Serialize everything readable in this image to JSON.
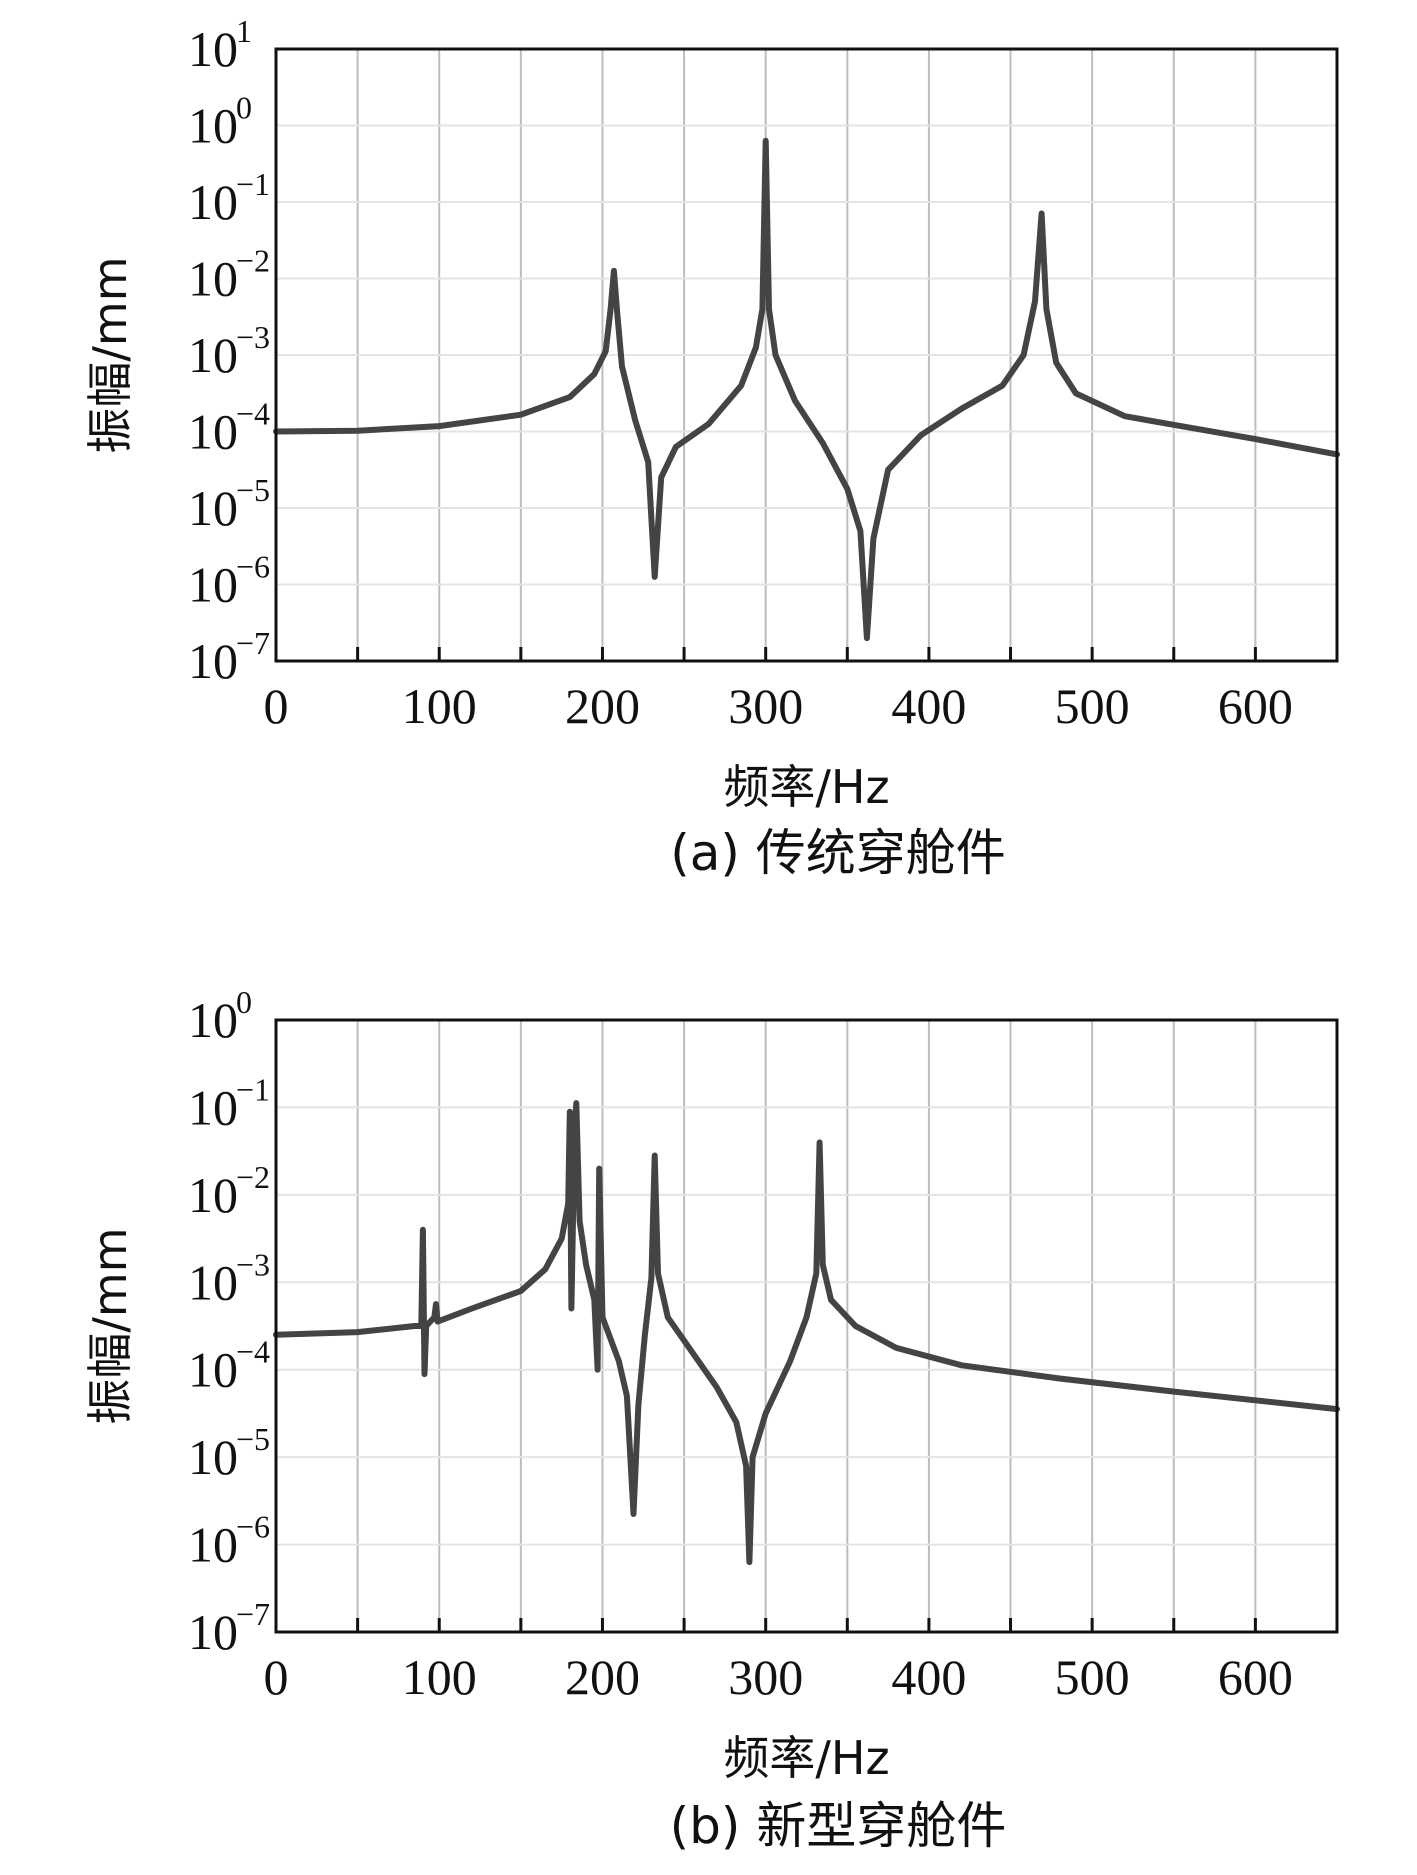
{
  "chart_data": [
    {
      "type": "line",
      "caption": "(a) 传统穿舱件",
      "xlabel": "频率/Hz",
      "ylabel": "振幅/mm",
      "xlim": [
        0,
        650
      ],
      "ylim_exp": [
        -7,
        1
      ],
      "y_scale": "log",
      "grid": true,
      "x_ticks": [
        "0",
        "100",
        "200",
        "300",
        "400",
        "500",
        "600"
      ],
      "x_tick_values": [
        0,
        100,
        200,
        300,
        400,
        500,
        600
      ],
      "y_tick_base": "10",
      "y_tick_exponents": [
        "1",
        "0",
        "−1",
        "−2",
        "−3",
        "−4",
        "−5",
        "−6",
        "−7"
      ],
      "series": [
        {
          "points": [
            [
              0,
              -4
            ],
            [
              50,
              -3.99
            ],
            [
              100,
              -3.93
            ],
            [
              150,
              -3.78
            ],
            [
              180,
              -3.55
            ],
            [
              195,
              -3.25
            ],
            [
              202,
              -2.95
            ],
            [
              205,
              -2.4
            ],
            [
              207,
              -1.9
            ],
            [
              209,
              -2.45
            ],
            [
              212,
              -3.15
            ],
            [
              220,
              -3.85
            ],
            [
              228,
              -4.4
            ],
            [
              232,
              -5.9
            ],
            [
              236,
              -4.6
            ],
            [
              245,
              -4.2
            ],
            [
              265,
              -3.9
            ],
            [
              285,
              -3.4
            ],
            [
              294,
              -2.9
            ],
            [
              298,
              -2.4
            ],
            [
              300,
              -0.2
            ],
            [
              302,
              -2.4
            ],
            [
              306,
              -3.0
            ],
            [
              318,
              -3.6
            ],
            [
              335,
              -4.15
            ],
            [
              350,
              -4.75
            ],
            [
              358,
              -5.3
            ],
            [
              362,
              -6.7
            ],
            [
              366,
              -5.4
            ],
            [
              375,
              -4.5
            ],
            [
              395,
              -4.05
            ],
            [
              420,
              -3.7
            ],
            [
              445,
              -3.4
            ],
            [
              458,
              -3.0
            ],
            [
              465,
              -2.3
            ],
            [
              469,
              -1.15
            ],
            [
              472,
              -2.4
            ],
            [
              478,
              -3.1
            ],
            [
              490,
              -3.5
            ],
            [
              520,
              -3.8
            ],
            [
              560,
              -3.95
            ],
            [
              600,
              -4.1
            ],
            [
              650,
              -4.3
            ]
          ]
        }
      ]
    },
    {
      "type": "line",
      "caption": "(b) 新型穿舱件",
      "xlabel": "频率/Hz",
      "ylabel": "振幅/mm",
      "xlim": [
        0,
        650
      ],
      "ylim_exp": [
        -7,
        0
      ],
      "y_scale": "log",
      "grid": true,
      "x_ticks": [
        "0",
        "100",
        "200",
        "300",
        "400",
        "500",
        "600"
      ],
      "x_tick_values": [
        0,
        100,
        200,
        300,
        400,
        500,
        600
      ],
      "y_tick_base": "10",
      "y_tick_exponents": [
        "0",
        "−1",
        "−2",
        "−3",
        "−4",
        "−5",
        "−6",
        "−7"
      ],
      "series": [
        {
          "points": [
            [
              0,
              -3.6
            ],
            [
              50,
              -3.57
            ],
            [
              85,
              -3.5
            ],
            [
              89,
              -3.5
            ],
            [
              90,
              -2.4
            ],
            [
              91,
              -4.05
            ],
            [
              92,
              -3.5
            ],
            [
              97,
              -3.4
            ],
            [
              98,
              -3.25
            ],
            [
              99,
              -3.45
            ],
            [
              120,
              -3.3
            ],
            [
              150,
              -3.1
            ],
            [
              165,
              -2.85
            ],
            [
              175,
              -2.5
            ],
            [
              179,
              -2.1
            ],
            [
              180,
              -1.05
            ],
            [
              181,
              -3.3
            ],
            [
              183,
              -1.2
            ],
            [
              184,
              -0.95
            ],
            [
              186,
              -2.3
            ],
            [
              190,
              -2.8
            ],
            [
              195,
              -3.2
            ],
            [
              197,
              -4.0
            ],
            [
              198,
              -1.7
            ],
            [
              200,
              -3.4
            ],
            [
              210,
              -3.9
            ],
            [
              215,
              -4.3
            ],
            [
              219,
              -5.65
            ],
            [
              222,
              -4.4
            ],
            [
              226,
              -3.6
            ],
            [
              230,
              -2.95
            ],
            [
              232,
              -1.55
            ],
            [
              234,
              -2.9
            ],
            [
              240,
              -3.4
            ],
            [
              255,
              -3.8
            ],
            [
              270,
              -4.2
            ],
            [
              282,
              -4.6
            ],
            [
              288,
              -5.1
            ],
            [
              290,
              -6.2
            ],
            [
              292,
              -5.0
            ],
            [
              300,
              -4.5
            ],
            [
              315,
              -3.9
            ],
            [
              325,
              -3.4
            ],
            [
              331,
              -2.9
            ],
            [
              333,
              -1.4
            ],
            [
              335,
              -2.8
            ],
            [
              340,
              -3.2
            ],
            [
              355,
              -3.5
            ],
            [
              380,
              -3.75
            ],
            [
              420,
              -3.95
            ],
            [
              480,
              -4.1
            ],
            [
              550,
              -4.25
            ],
            [
              600,
              -4.35
            ],
            [
              650,
              -4.45
            ]
          ]
        }
      ]
    }
  ]
}
